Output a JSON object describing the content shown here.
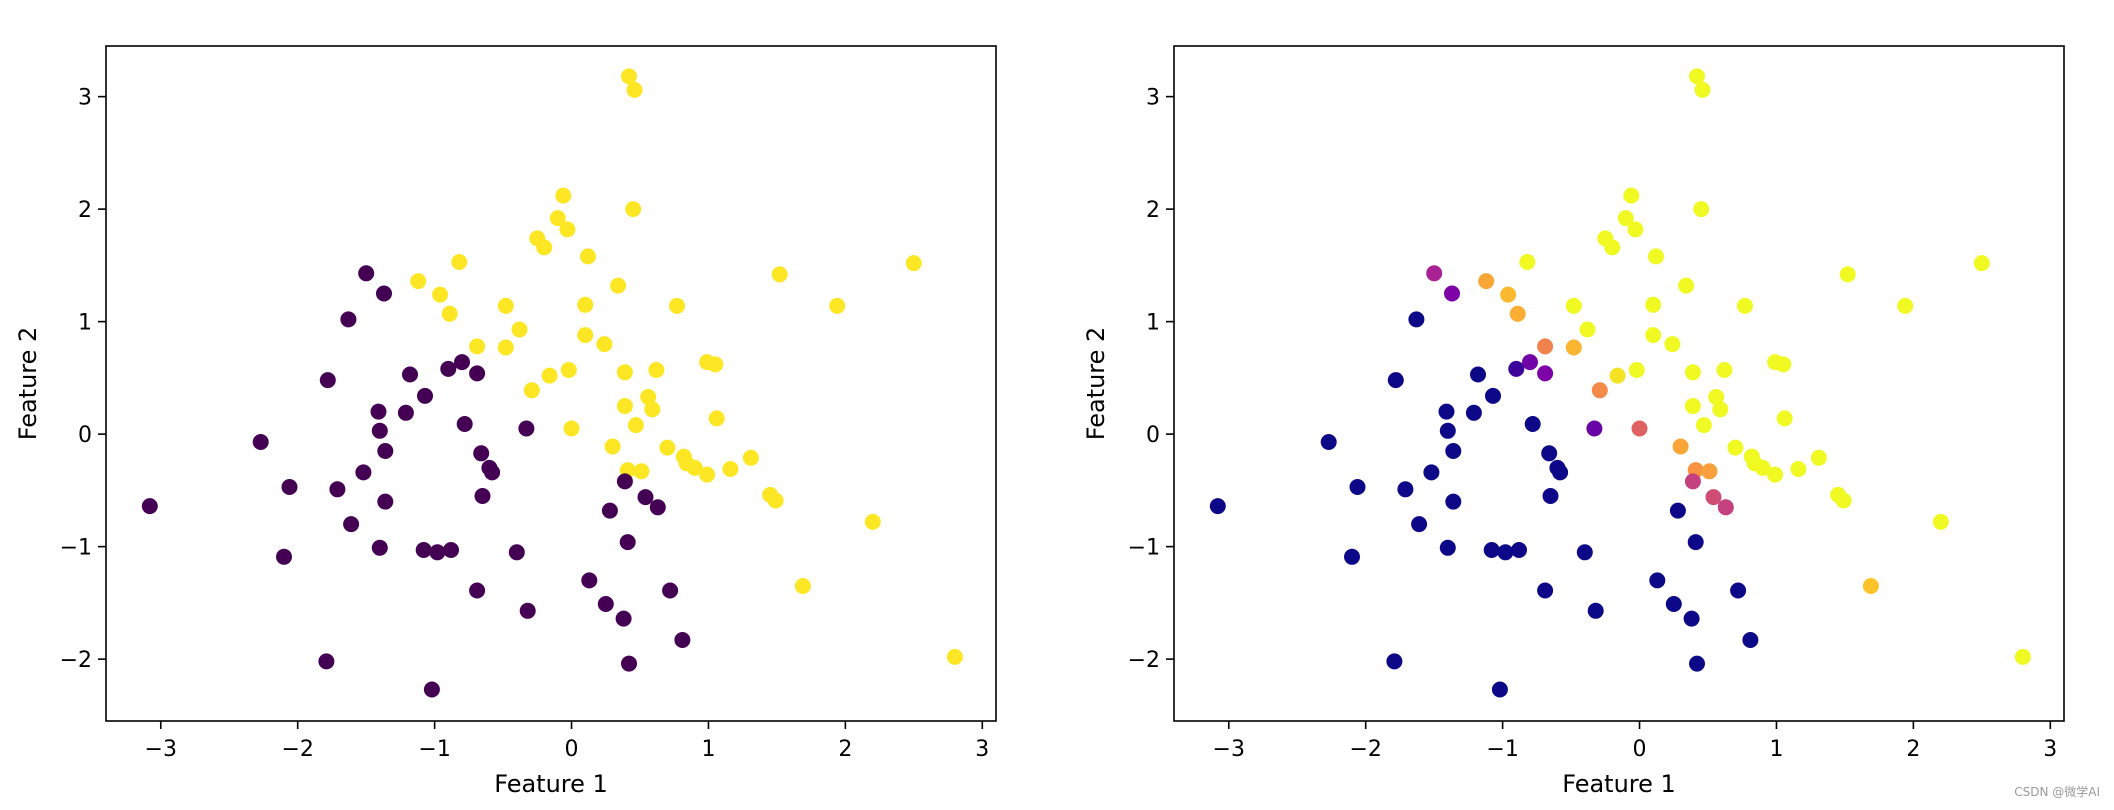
{
  "watermark": "CSDN @微学AI",
  "chart_data": [
    {
      "type": "scatter",
      "xlabel": "Feature 1",
      "ylabel": "Feature 2",
      "xlim": [
        -3.4,
        3.1
      ],
      "ylim": [
        -2.55,
        3.45
      ],
      "xticks": [
        -3,
        -2,
        -1,
        0,
        1,
        2,
        3
      ],
      "yticks": [
        -2,
        -1,
        0,
        1,
        2,
        3
      ],
      "colormap": "viridis",
      "marker_colors": {
        "class_0": "#440154",
        "class_1": "#fde725"
      },
      "points": [
        {
          "x": 0.42,
          "y": 3.18,
          "c": 1
        },
        {
          "x": 0.46,
          "y": 3.06,
          "c": 1
        },
        {
          "x": -0.06,
          "y": 2.12,
          "c": 1
        },
        {
          "x": 0.45,
          "y": 2.0,
          "c": 1
        },
        {
          "x": -0.1,
          "y": 1.92,
          "c": 1
        },
        {
          "x": -0.03,
          "y": 1.82,
          "c": 1
        },
        {
          "x": -0.25,
          "y": 1.74,
          "c": 1
        },
        {
          "x": -0.2,
          "y": 1.66,
          "c": 1
        },
        {
          "x": 0.12,
          "y": 1.58,
          "c": 1
        },
        {
          "x": -0.82,
          "y": 1.53,
          "c": 1
        },
        {
          "x": 2.5,
          "y": 1.52,
          "c": 1
        },
        {
          "x": 1.52,
          "y": 1.42,
          "c": 1
        },
        {
          "x": -1.12,
          "y": 1.36,
          "c": 1
        },
        {
          "x": 0.34,
          "y": 1.32,
          "c": 1
        },
        {
          "x": -0.96,
          "y": 1.24,
          "c": 1
        },
        {
          "x": -0.48,
          "y": 1.14,
          "c": 1
        },
        {
          "x": 0.1,
          "y": 1.15,
          "c": 1
        },
        {
          "x": 0.77,
          "y": 1.14,
          "c": 1
        },
        {
          "x": 1.94,
          "y": 1.14,
          "c": 1
        },
        {
          "x": -0.89,
          "y": 1.07,
          "c": 1
        },
        {
          "x": -0.38,
          "y": 0.93,
          "c": 1
        },
        {
          "x": 0.1,
          "y": 0.88,
          "c": 1
        },
        {
          "x": 0.24,
          "y": 0.8,
          "c": 1
        },
        {
          "x": -0.69,
          "y": 0.78,
          "c": 1
        },
        {
          "x": -0.48,
          "y": 0.77,
          "c": 1
        },
        {
          "x": 0.99,
          "y": 0.64,
          "c": 1
        },
        {
          "x": 1.05,
          "y": 0.62,
          "c": 1
        },
        {
          "x": -0.02,
          "y": 0.57,
          "c": 1
        },
        {
          "x": 0.62,
          "y": 0.57,
          "c": 1
        },
        {
          "x": 0.39,
          "y": 0.55,
          "c": 1
        },
        {
          "x": -0.16,
          "y": 0.52,
          "c": 1
        },
        {
          "x": -0.29,
          "y": 0.39,
          "c": 1
        },
        {
          "x": 0.56,
          "y": 0.33,
          "c": 1
        },
        {
          "x": 0.39,
          "y": 0.25,
          "c": 1
        },
        {
          "x": 0.59,
          "y": 0.22,
          "c": 1
        },
        {
          "x": 1.06,
          "y": 0.14,
          "c": 1
        },
        {
          "x": 0.47,
          "y": 0.08,
          "c": 1
        },
        {
          "x": 0.0,
          "y": 0.05,
          "c": 1
        },
        {
          "x": 0.3,
          "y": -0.11,
          "c": 1
        },
        {
          "x": 0.7,
          "y": -0.12,
          "c": 1
        },
        {
          "x": 1.31,
          "y": -0.21,
          "c": 1
        },
        {
          "x": 0.82,
          "y": -0.2,
          "c": 1
        },
        {
          "x": 0.84,
          "y": -0.26,
          "c": 1
        },
        {
          "x": 0.9,
          "y": -0.3,
          "c": 1
        },
        {
          "x": 1.16,
          "y": -0.31,
          "c": 1
        },
        {
          "x": 0.41,
          "y": -0.32,
          "c": 1
        },
        {
          "x": 0.51,
          "y": -0.33,
          "c": 1
        },
        {
          "x": 0.99,
          "y": -0.36,
          "c": 1
        },
        {
          "x": 1.45,
          "y": -0.54,
          "c": 1
        },
        {
          "x": 1.49,
          "y": -0.59,
          "c": 1
        },
        {
          "x": 2.2,
          "y": -0.78,
          "c": 1
        },
        {
          "x": 1.69,
          "y": -1.35,
          "c": 1
        },
        {
          "x": 2.8,
          "y": -1.98,
          "c": 1
        },
        {
          "x": -1.5,
          "y": 1.43,
          "c": 0
        },
        {
          "x": -1.37,
          "y": 1.25,
          "c": 0
        },
        {
          "x": -1.63,
          "y": 1.02,
          "c": 0
        },
        {
          "x": -0.8,
          "y": 0.64,
          "c": 0
        },
        {
          "x": -0.9,
          "y": 0.58,
          "c": 0
        },
        {
          "x": -0.69,
          "y": 0.54,
          "c": 0
        },
        {
          "x": -1.18,
          "y": 0.53,
          "c": 0
        },
        {
          "x": -1.78,
          "y": 0.48,
          "c": 0
        },
        {
          "x": -1.07,
          "y": 0.34,
          "c": 0
        },
        {
          "x": -1.41,
          "y": 0.2,
          "c": 0
        },
        {
          "x": -1.21,
          "y": 0.19,
          "c": 0
        },
        {
          "x": -0.78,
          "y": 0.09,
          "c": 0
        },
        {
          "x": -1.4,
          "y": 0.03,
          "c": 0
        },
        {
          "x": -0.33,
          "y": 0.05,
          "c": 0
        },
        {
          "x": -2.27,
          "y": -0.07,
          "c": 0
        },
        {
          "x": -1.36,
          "y": -0.15,
          "c": 0
        },
        {
          "x": -0.66,
          "y": -0.17,
          "c": 0
        },
        {
          "x": -0.6,
          "y": -0.3,
          "c": 0
        },
        {
          "x": -0.58,
          "y": -0.34,
          "c": 0
        },
        {
          "x": -1.52,
          "y": -0.34,
          "c": 0
        },
        {
          "x": 0.39,
          "y": -0.42,
          "c": 0
        },
        {
          "x": -2.06,
          "y": -0.47,
          "c": 0
        },
        {
          "x": -1.71,
          "y": -0.49,
          "c": 0
        },
        {
          "x": -0.65,
          "y": -0.55,
          "c": 0
        },
        {
          "x": 0.54,
          "y": -0.56,
          "c": 0
        },
        {
          "x": -1.36,
          "y": -0.6,
          "c": 0
        },
        {
          "x": -3.08,
          "y": -0.64,
          "c": 0
        },
        {
          "x": 0.63,
          "y": -0.65,
          "c": 0
        },
        {
          "x": 0.28,
          "y": -0.68,
          "c": 0
        },
        {
          "x": -1.61,
          "y": -0.8,
          "c": 0
        },
        {
          "x": 0.41,
          "y": -0.96,
          "c": 0
        },
        {
          "x": -1.4,
          "y": -1.01,
          "c": 0
        },
        {
          "x": -1.08,
          "y": -1.03,
          "c": 0
        },
        {
          "x": -0.88,
          "y": -1.03,
          "c": 0
        },
        {
          "x": -0.98,
          "y": -1.05,
          "c": 0
        },
        {
          "x": -0.4,
          "y": -1.05,
          "c": 0
        },
        {
          "x": -2.1,
          "y": -1.09,
          "c": 0
        },
        {
          "x": 0.13,
          "y": -1.3,
          "c": 0
        },
        {
          "x": -0.69,
          "y": -1.39,
          "c": 0
        },
        {
          "x": 0.72,
          "y": -1.39,
          "c": 0
        },
        {
          "x": 0.25,
          "y": -1.51,
          "c": 0
        },
        {
          "x": -0.32,
          "y": -1.57,
          "c": 0
        },
        {
          "x": 0.38,
          "y": -1.64,
          "c": 0
        },
        {
          "x": 0.81,
          "y": -1.83,
          "c": 0
        },
        {
          "x": -1.79,
          "y": -2.02,
          "c": 0
        },
        {
          "x": 0.42,
          "y": -2.04,
          "c": 0
        },
        {
          "x": -1.02,
          "y": -2.27,
          "c": 0
        }
      ]
    },
    {
      "type": "scatter",
      "xlabel": "Feature 1",
      "ylabel": "Feature 2",
      "xlim": [
        -3.4,
        3.1
      ],
      "ylim": [
        -2.55,
        3.45
      ],
      "xticks": [
        -3,
        -2,
        -1,
        0,
        1,
        2,
        3
      ],
      "yticks": [
        -2,
        -1,
        0,
        1,
        2,
        3
      ],
      "colormap": "plasma",
      "color_value_range": [
        0,
        1
      ],
      "points": [
        {
          "x": 0.42,
          "y": 3.18,
          "v": 1.0
        },
        {
          "x": 0.46,
          "y": 3.06,
          "v": 1.0
        },
        {
          "x": -0.06,
          "y": 2.12,
          "v": 1.0
        },
        {
          "x": 0.45,
          "y": 2.0,
          "v": 1.0
        },
        {
          "x": -0.1,
          "y": 1.92,
          "v": 1.0
        },
        {
          "x": -0.03,
          "y": 1.82,
          "v": 1.0
        },
        {
          "x": -0.25,
          "y": 1.74,
          "v": 1.0
        },
        {
          "x": -0.2,
          "y": 1.66,
          "v": 1.0
        },
        {
          "x": 0.12,
          "y": 1.58,
          "v": 1.0
        },
        {
          "x": -0.82,
          "y": 1.53,
          "v": 1.0
        },
        {
          "x": 2.5,
          "y": 1.52,
          "v": 1.0
        },
        {
          "x": 1.52,
          "y": 1.42,
          "v": 1.0
        },
        {
          "x": -1.12,
          "y": 1.36,
          "v": 0.8
        },
        {
          "x": 0.34,
          "y": 1.32,
          "v": 1.0
        },
        {
          "x": -0.96,
          "y": 1.24,
          "v": 0.85
        },
        {
          "x": -0.48,
          "y": 1.14,
          "v": 1.0
        },
        {
          "x": 0.1,
          "y": 1.15,
          "v": 1.0
        },
        {
          "x": 0.77,
          "y": 1.14,
          "v": 1.0
        },
        {
          "x": 1.94,
          "y": 1.14,
          "v": 1.0
        },
        {
          "x": -0.89,
          "y": 1.07,
          "v": 0.82
        },
        {
          "x": -0.38,
          "y": 0.93,
          "v": 1.0
        },
        {
          "x": 0.1,
          "y": 0.88,
          "v": 1.0
        },
        {
          "x": 0.24,
          "y": 0.8,
          "v": 1.0
        },
        {
          "x": -0.69,
          "y": 0.78,
          "v": 0.7
        },
        {
          "x": -0.48,
          "y": 0.77,
          "v": 0.84
        },
        {
          "x": 0.99,
          "y": 0.64,
          "v": 1.0
        },
        {
          "x": 1.05,
          "y": 0.62,
          "v": 1.0
        },
        {
          "x": -0.02,
          "y": 0.57,
          "v": 1.0
        },
        {
          "x": 0.62,
          "y": 0.57,
          "v": 1.0
        },
        {
          "x": 0.39,
          "y": 0.55,
          "v": 1.0
        },
        {
          "x": -0.16,
          "y": 0.52,
          "v": 0.95
        },
        {
          "x": -0.29,
          "y": 0.39,
          "v": 0.72
        },
        {
          "x": 0.56,
          "y": 0.33,
          "v": 1.0
        },
        {
          "x": 0.39,
          "y": 0.25,
          "v": 1.0
        },
        {
          "x": 0.59,
          "y": 0.22,
          "v": 1.0
        },
        {
          "x": 1.06,
          "y": 0.14,
          "v": 1.0
        },
        {
          "x": 0.47,
          "y": 0.08,
          "v": 1.0
        },
        {
          "x": 0.0,
          "y": 0.05,
          "v": 0.6
        },
        {
          "x": 0.3,
          "y": -0.11,
          "v": 0.8
        },
        {
          "x": 0.7,
          "y": -0.12,
          "v": 1.0
        },
        {
          "x": 1.31,
          "y": -0.21,
          "v": 1.0
        },
        {
          "x": 0.82,
          "y": -0.2,
          "v": 1.0
        },
        {
          "x": 0.84,
          "y": -0.26,
          "v": 1.0
        },
        {
          "x": 0.9,
          "y": -0.3,
          "v": 1.0
        },
        {
          "x": 1.16,
          "y": -0.31,
          "v": 1.0
        },
        {
          "x": 0.41,
          "y": -0.32,
          "v": 0.75
        },
        {
          "x": 0.51,
          "y": -0.33,
          "v": 0.78
        },
        {
          "x": 0.99,
          "y": -0.36,
          "v": 1.0
        },
        {
          "x": 1.45,
          "y": -0.54,
          "v": 1.0
        },
        {
          "x": 1.49,
          "y": -0.59,
          "v": 1.0
        },
        {
          "x": 2.2,
          "y": -0.78,
          "v": 1.0
        },
        {
          "x": 1.69,
          "y": -1.35,
          "v": 0.88
        },
        {
          "x": 2.8,
          "y": -1.98,
          "v": 1.0
        },
        {
          "x": -1.5,
          "y": 1.43,
          "v": 0.38
        },
        {
          "x": -1.37,
          "y": 1.25,
          "v": 0.25
        },
        {
          "x": -1.63,
          "y": 1.02,
          "v": 0.0
        },
        {
          "x": -0.8,
          "y": 0.64,
          "v": 0.22
        },
        {
          "x": -0.9,
          "y": 0.58,
          "v": 0.1
        },
        {
          "x": -0.69,
          "y": 0.54,
          "v": 0.25
        },
        {
          "x": -1.18,
          "y": 0.53,
          "v": 0.0
        },
        {
          "x": -1.78,
          "y": 0.48,
          "v": 0.0
        },
        {
          "x": -1.07,
          "y": 0.34,
          "v": 0.0
        },
        {
          "x": -1.41,
          "y": 0.2,
          "v": 0.0
        },
        {
          "x": -1.21,
          "y": 0.19,
          "v": 0.0
        },
        {
          "x": -0.78,
          "y": 0.09,
          "v": 0.0
        },
        {
          "x": -1.4,
          "y": 0.03,
          "v": 0.0
        },
        {
          "x": -0.33,
          "y": 0.05,
          "v": 0.2
        },
        {
          "x": -2.27,
          "y": -0.07,
          "v": 0.0
        },
        {
          "x": -1.36,
          "y": -0.15,
          "v": 0.0
        },
        {
          "x": -0.66,
          "y": -0.17,
          "v": 0.0
        },
        {
          "x": -0.6,
          "y": -0.3,
          "v": 0.0
        },
        {
          "x": -0.58,
          "y": -0.34,
          "v": 0.0
        },
        {
          "x": -1.52,
          "y": -0.34,
          "v": 0.0
        },
        {
          "x": 0.39,
          "y": -0.42,
          "v": 0.48
        },
        {
          "x": -2.06,
          "y": -0.47,
          "v": 0.0
        },
        {
          "x": -1.71,
          "y": -0.49,
          "v": 0.0
        },
        {
          "x": -0.65,
          "y": -0.55,
          "v": 0.0
        },
        {
          "x": 0.54,
          "y": -0.56,
          "v": 0.52
        },
        {
          "x": -1.36,
          "y": -0.6,
          "v": 0.0
        },
        {
          "x": -3.08,
          "y": -0.64,
          "v": 0.0
        },
        {
          "x": 0.63,
          "y": -0.65,
          "v": 0.48
        },
        {
          "x": 0.28,
          "y": -0.68,
          "v": 0.0
        },
        {
          "x": -1.61,
          "y": -0.8,
          "v": 0.0
        },
        {
          "x": 0.41,
          "y": -0.96,
          "v": 0.0
        },
        {
          "x": -1.4,
          "y": -1.01,
          "v": 0.0
        },
        {
          "x": -1.08,
          "y": -1.03,
          "v": 0.0
        },
        {
          "x": -0.88,
          "y": -1.03,
          "v": 0.0
        },
        {
          "x": -0.98,
          "y": -1.05,
          "v": 0.0
        },
        {
          "x": -0.4,
          "y": -1.05,
          "v": 0.0
        },
        {
          "x": -2.1,
          "y": -1.09,
          "v": 0.0
        },
        {
          "x": 0.13,
          "y": -1.3,
          "v": 0.0
        },
        {
          "x": -0.69,
          "y": -1.39,
          "v": 0.0
        },
        {
          "x": 0.72,
          "y": -1.39,
          "v": 0.0
        },
        {
          "x": 0.25,
          "y": -1.51,
          "v": 0.0
        },
        {
          "x": -0.32,
          "y": -1.57,
          "v": 0.0
        },
        {
          "x": 0.38,
          "y": -1.64,
          "v": 0.0
        },
        {
          "x": 0.81,
          "y": -1.83,
          "v": 0.0
        },
        {
          "x": -1.79,
          "y": -2.02,
          "v": 0.0
        },
        {
          "x": 0.42,
          "y": -2.04,
          "v": 0.0
        },
        {
          "x": -1.02,
          "y": -2.27,
          "v": 0.0
        }
      ]
    }
  ]
}
